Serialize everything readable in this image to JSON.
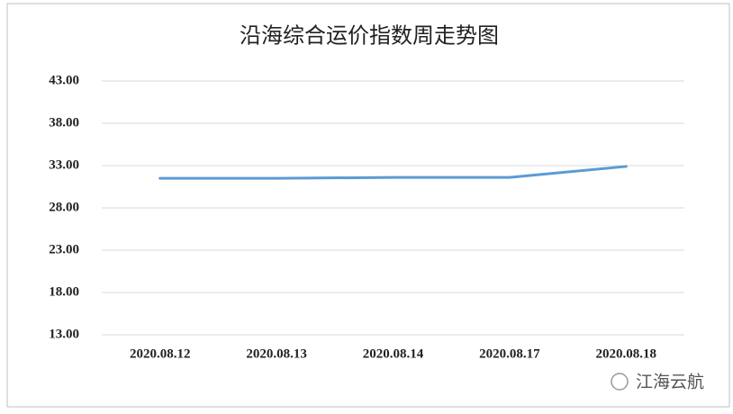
{
  "chart_data": {
    "type": "line",
    "title": "沿海综合运价指数周走势图",
    "categories": [
      "2020.08.12",
      "2020.08.13",
      "2020.08.14",
      "2020.08.17",
      "2020.08.18"
    ],
    "series": [
      {
        "color": "#5b9bd5",
        "values": [
          31.5,
          31.5,
          31.6,
          31.6,
          32.9
        ]
      }
    ],
    "ylim": [
      13,
      43
    ],
    "yticks": [
      {
        "value": 13,
        "label": "13.00"
      },
      {
        "value": 18,
        "label": "18.00"
      },
      {
        "value": 23,
        "label": "23.00"
      },
      {
        "value": 28,
        "label": "28.00"
      },
      {
        "value": 33,
        "label": "33.00"
      },
      {
        "value": 38,
        "label": "38.00"
      },
      {
        "value": 43,
        "label": "43.00"
      }
    ],
    "grid": true,
    "watermark": "江海云航"
  }
}
